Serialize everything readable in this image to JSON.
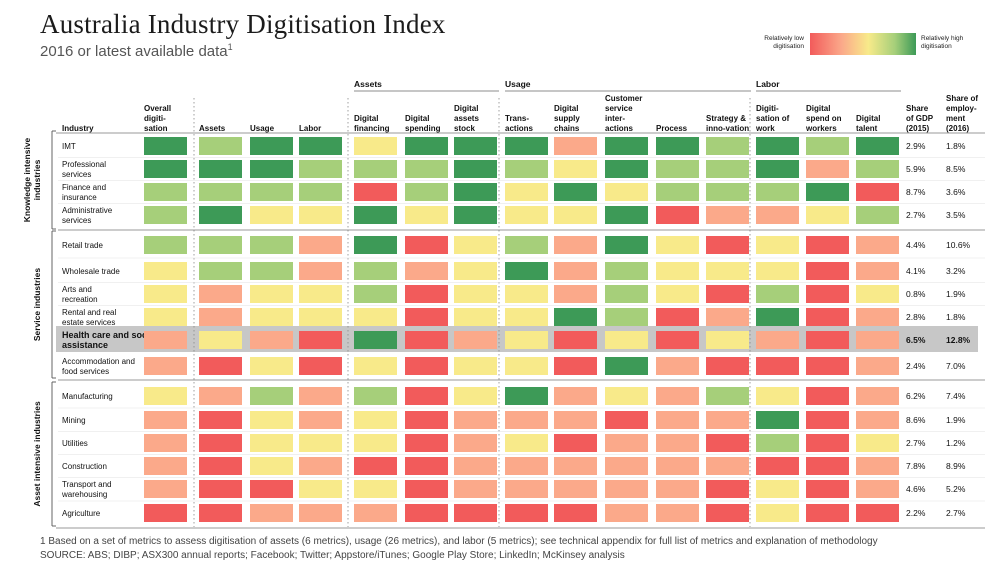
{
  "header": {
    "title": "Australia Industry Digitisation Index",
    "subtitle": "2016 or latest available data",
    "subtitle_sup": "1"
  },
  "legend": {
    "low_label": "Relatively low digitisation",
    "high_label": "Relatively high digitisation",
    "colors": {
      "1": "#f25b5b",
      "2": "#fba98a",
      "3": "#f8ea8a",
      "4": "#a6cf7a",
      "5": "#3d9a57"
    }
  },
  "footnote": {
    "note": "1 Based on a set of metrics to assess digitisation of assets (6 metrics), usage (26 metrics), and labor (5 metrics); see technical appendix for full list of metrics and explanation of methodology",
    "source": "SOURCE:  ABS; DIBP; ASX300 annual reports; Facebook; Twitter; Appstore/iTunes; Google Play Store; LinkedIn;  McKinsey analysis"
  },
  "chart_data": {
    "type": "heatmap",
    "title": "Australia Industry Digitisation Index",
    "subtitle": "2016 or latest available data",
    "scale": "1 = relatively low digitisation (red) … 5 = relatively high digitisation (green)",
    "column_groups": [
      {
        "label": "Assets",
        "columns": [
          "Digital financing",
          "Digital spending",
          "Digital assets stock"
        ]
      },
      {
        "label": "Usage",
        "columns": [
          "Trans-actions",
          "Digital supply chains",
          "Customer service inter-actions",
          "Process",
          "Strategy & inno-vation"
        ]
      },
      {
        "label": "Labor",
        "columns": [
          "Digiti-sation of work",
          "Digital spend on workers",
          "Digital talent"
        ]
      }
    ],
    "columns": [
      "Overall digiti-sation",
      "Assets",
      "Usage",
      "Labor",
      "Digital financing",
      "Digital spending",
      "Digital assets stock",
      "Trans-actions",
      "Digital supply chains",
      "Customer service inter-actions",
      "Process",
      "Strategy & inno-vation",
      "Digiti-sation of work",
      "Digital spend on workers",
      "Digital talent"
    ],
    "extra_columns": [
      "Share of GDP (2015)",
      "Share of employ-ment (2016)"
    ],
    "industry_header": "Industry",
    "sector_groups": [
      {
        "label": "Knowledge intensive industries",
        "rows": [
          {
            "name": "IMT",
            "values": [
              5,
              4,
              5,
              5,
              3,
              5,
              5,
              5,
              2,
              5,
              5,
              4,
              5,
              4,
              5
            ],
            "gdp": "2.9%",
            "employment": "1.8%"
          },
          {
            "name": "Professional services",
            "values": [
              5,
              5,
              5,
              4,
              4,
              4,
              5,
              4,
              3,
              5,
              4,
              4,
              5,
              2,
              4
            ],
            "gdp": "5.9%",
            "employment": "8.5%"
          },
          {
            "name": "Finance and insurance",
            "values": [
              4,
              4,
              4,
              4,
              1,
              4,
              5,
              3,
              5,
              3,
              4,
              4,
              4,
              5,
              1
            ],
            "gdp": "8.7%",
            "employment": "3.6%"
          },
          {
            "name": "Administrative services",
            "values": [
              4,
              5,
              3,
              3,
              5,
              3,
              5,
              3,
              3,
              5,
              1,
              2,
              2,
              3,
              4
            ],
            "gdp": "2.7%",
            "employment": "3.5%"
          }
        ]
      },
      {
        "label": "Service industries",
        "rows": [
          {
            "name": "Retail trade",
            "values": [
              4,
              4,
              4,
              2,
              5,
              1,
              3,
              4,
              2,
              5,
              3,
              1,
              3,
              1,
              2
            ],
            "gdp": "4.4%",
            "employment": "10.6%"
          },
          {
            "name": "Wholesale trade",
            "values": [
              3,
              4,
              4,
              2,
              4,
              2,
              3,
              5,
              2,
              4,
              3,
              3,
              3,
              1,
              2
            ],
            "gdp": "4.1%",
            "employment": "3.2%"
          },
          {
            "name": "Arts and recreation",
            "values": [
              3,
              2,
              3,
              3,
              4,
              1,
              3,
              3,
              2,
              4,
              3,
              1,
              4,
              1,
              3
            ],
            "gdp": "0.8%",
            "employment": "1.9%"
          },
          {
            "name": "Rental and real estate services",
            "values": [
              3,
              2,
              3,
              3,
              3,
              1,
              3,
              3,
              5,
              4,
              1,
              2,
              5,
              1,
              2
            ],
            "gdp": "2.8%",
            "employment": "1.8%"
          },
          {
            "name": "Health care and social assistance",
            "values": [
              2,
              3,
              2,
              1,
              5,
              1,
              2,
              3,
              1,
              3,
              1,
              3,
              2,
              1,
              2
            ],
            "gdp": "6.5%",
            "employment": "12.8%",
            "highlight": true
          },
          {
            "name": "Accommodation and food services",
            "values": [
              2,
              1,
              3,
              1,
              3,
              1,
              3,
              3,
              1,
              5,
              2,
              1,
              1,
              1,
              2
            ],
            "gdp": "2.4%",
            "employment": "7.0%"
          }
        ]
      },
      {
        "label": "Asset intensive industries",
        "rows": [
          {
            "name": "Manufacturing",
            "values": [
              3,
              2,
              4,
              2,
              4,
              1,
              3,
              5,
              2,
              3,
              2,
              4,
              3,
              1,
              2
            ],
            "gdp": "6.2%",
            "employment": "7.4%"
          },
          {
            "name": "Mining",
            "values": [
              2,
              1,
              3,
              2,
              3,
              1,
              2,
              2,
              2,
              1,
              2,
              2,
              5,
              1,
              2
            ],
            "gdp": "8.6%",
            "employment": "1.9%"
          },
          {
            "name": "Utilities",
            "values": [
              2,
              1,
              3,
              3,
              3,
              1,
              2,
              3,
              1,
              2,
              2,
              1,
              4,
              1,
              3
            ],
            "gdp": "2.7%",
            "employment": "1.2%"
          },
          {
            "name": "Construction",
            "values": [
              2,
              1,
              3,
              2,
              1,
              1,
              2,
              2,
              2,
              2,
              2,
              2,
              1,
              1,
              2
            ],
            "gdp": "7.8%",
            "employment": "8.9%"
          },
          {
            "name": "Transport and warehousing",
            "values": [
              2,
              1,
              1,
              3,
              3,
              1,
              2,
              2,
              2,
              2,
              2,
              1,
              3,
              1,
              2
            ],
            "gdp": "4.6%",
            "employment": "5.2%"
          },
          {
            "name": "Agriculture",
            "values": [
              1,
              1,
              2,
              2,
              2,
              1,
              1,
              1,
              1,
              2,
              2,
              1,
              3,
              1,
              1
            ],
            "gdp": "2.2%",
            "employment": "2.7%"
          }
        ]
      }
    ]
  }
}
